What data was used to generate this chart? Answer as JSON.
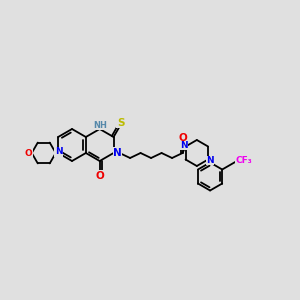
{
  "bg_color": "#e0e0e0",
  "bond_color": "#000000",
  "bond_width": 1.3,
  "atom_colors": {
    "N": "#0000ee",
    "O": "#ee0000",
    "S": "#bbbb00",
    "F": "#ee00ee",
    "NH": "#5588aa",
    "C": "#000000"
  },
  "font_size": 6.5
}
